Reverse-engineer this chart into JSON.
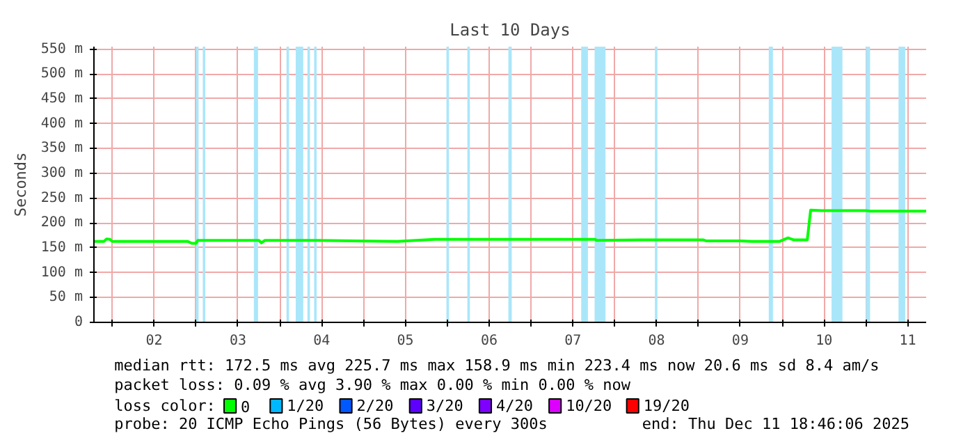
{
  "chart_data": {
    "type": "line",
    "title": "Last 10 Days",
    "ylabel": "Seconds",
    "x": [
      1.78,
      1.9,
      1.93,
      1.97,
      2.0,
      2.9,
      2.95,
      3.0,
      3.02,
      3.75,
      3.78,
      3.82,
      4.45,
      5.4,
      5.85,
      7.77,
      7.78,
      8.31,
      9.06,
      9.09,
      9.5,
      9.64,
      9.97,
      10.07,
      10.14,
      10.3,
      10.34,
      10.47,
      11.0,
      11.05,
      11.72
    ],
    "series": [
      {
        "name": "0",
        "color": "#00ff00",
        "values": [
          163,
          163,
          168,
          167,
          163,
          163,
          159,
          159,
          165,
          165,
          160,
          165,
          165,
          163,
          167,
          167,
          165,
          166,
          166,
          164,
          164,
          163,
          163,
          170,
          166,
          166,
          226,
          225,
          225,
          224,
          224
        ]
      },
      {
        "name": "1/20",
        "color": "#00b8ff",
        "values": [
          null,
          null,
          null,
          null,
          null,
          null,
          null,
          null,
          null,
          null,
          null,
          null,
          null,
          null,
          null,
          null,
          null,
          null,
          null,
          null,
          null,
          null,
          null,
          null,
          null,
          null,
          null,
          null,
          null,
          null,
          null
        ]
      },
      {
        "name": "2/20",
        "color": "#0059ff",
        "values": [
          null,
          null,
          null,
          null,
          null,
          null,
          null,
          null,
          null,
          null,
          null,
          null,
          null,
          null,
          null,
          null,
          null,
          null,
          null,
          null,
          null,
          null,
          null,
          null,
          null,
          null,
          null,
          null,
          null,
          null,
          null
        ]
      },
      {
        "name": "3/20",
        "color": "#5e00ff",
        "values": [
          null,
          null,
          null,
          null,
          null,
          null,
          null,
          null,
          null,
          null,
          null,
          null,
          null,
          null,
          null,
          null,
          null,
          null,
          null,
          null,
          null,
          null,
          null,
          null,
          null,
          null,
          null,
          null,
          null,
          null,
          null
        ]
      },
      {
        "name": "4/20",
        "color": "#7e00ff",
        "values": [
          null,
          null,
          null,
          null,
          null,
          null,
          null,
          null,
          null,
          null,
          null,
          null,
          null,
          null,
          null,
          null,
          null,
          null,
          null,
          null,
          null,
          null,
          null,
          null,
          null,
          null,
          null,
          null,
          null,
          null,
          null
        ]
      },
      {
        "name": "10/20",
        "color": "#dd00ff",
        "values": [
          null,
          null,
          null,
          null,
          null,
          null,
          null,
          null,
          null,
          null,
          null,
          null,
          null,
          null,
          null,
          null,
          null,
          null,
          null,
          null,
          null,
          null,
          null,
          null,
          null,
          null,
          null,
          null,
          null,
          null,
          null
        ]
      },
      {
        "name": "19/20",
        "color": "#ff0000",
        "values": [
          null,
          null,
          null,
          null,
          null,
          null,
          null,
          null,
          null,
          null,
          null,
          null,
          null,
          null,
          null,
          null,
          null,
          null,
          null,
          null,
          null,
          null,
          null,
          null,
          null,
          null,
          null,
          null,
          null,
          null,
          null
        ]
      }
    ],
    "legend": "bottom",
    "legend_title": "loss color:",
    "grid": true,
    "xlim": [
      1.78,
      11.72
    ],
    "xticks": [
      {
        "value": 2,
        "label": null
      },
      {
        "value": 2.5,
        "label": "02"
      },
      {
        "value": 3,
        "label": null
      },
      {
        "value": 3.5,
        "label": "03"
      },
      {
        "value": 4,
        "label": null
      },
      {
        "value": 4.5,
        "label": "04"
      },
      {
        "value": 5,
        "label": null
      },
      {
        "value": 5.5,
        "label": "05"
      },
      {
        "value": 6,
        "label": null
      },
      {
        "value": 6.5,
        "label": "06"
      },
      {
        "value": 7,
        "label": null
      },
      {
        "value": 7.5,
        "label": "07"
      },
      {
        "value": 8,
        "label": null
      },
      {
        "value": 8.5,
        "label": "08"
      },
      {
        "value": 9,
        "label": null
      },
      {
        "value": 9.5,
        "label": "09"
      },
      {
        "value": 10,
        "label": null
      },
      {
        "value": 10.5,
        "label": "10"
      },
      {
        "value": 11,
        "label": null
      },
      {
        "value": 11.5,
        "label": "11"
      }
    ],
    "ylim": [
      0,
      555
    ],
    "yticks": [
      0,
      {
        "value": 50,
        "label": "50 m"
      },
      {
        "value": 100,
        "label": "100 m"
      },
      {
        "value": 150,
        "label": "150 m"
      },
      {
        "value": 200,
        "label": "200 m"
      },
      {
        "value": 250,
        "label": "250 m"
      },
      {
        "value": 300,
        "label": "300 m"
      },
      {
        "value": 350,
        "label": "350 m"
      },
      {
        "value": 400,
        "label": "400 m"
      },
      {
        "value": 450,
        "label": "450 m"
      },
      {
        "value": 500,
        "label": "500 m"
      },
      {
        "value": 550,
        "label": "550 m"
      }
    ],
    "bands": [
      {
        "axis": "x",
        "from": 2.997,
        "to": 3.03,
        "color": "#aae6fa"
      },
      {
        "axis": "x",
        "from": 3.08,
        "to": 3.11,
        "color": "#aae6fa"
      },
      {
        "axis": "x",
        "from": 3.69,
        "to": 3.74,
        "color": "#aae6fa"
      },
      {
        "axis": "x",
        "from": 4.08,
        "to": 4.11,
        "color": "#aae6fa"
      },
      {
        "axis": "x",
        "from": 4.19,
        "to": 4.28,
        "color": "#aae6fa"
      },
      {
        "axis": "x",
        "from": 4.33,
        "to": 4.36,
        "color": "#aae6fa"
      },
      {
        "axis": "x",
        "from": 4.41,
        "to": 4.44,
        "color": "#aae6fa"
      },
      {
        "axis": "x",
        "from": 5.99,
        "to": 6.02,
        "color": "#aae6fa"
      },
      {
        "axis": "x",
        "from": 6.24,
        "to": 6.27,
        "color": "#aae6fa"
      },
      {
        "axis": "x",
        "from": 6.73,
        "to": 6.77,
        "color": "#aae6fa"
      },
      {
        "axis": "x",
        "from": 7.6,
        "to": 7.68,
        "color": "#aae6fa"
      },
      {
        "axis": "x",
        "from": 7.76,
        "to": 7.89,
        "color": "#aae6fa"
      },
      {
        "axis": "x",
        "from": 8.48,
        "to": 8.51,
        "color": "#aae6fa"
      },
      {
        "axis": "x",
        "from": 9.84,
        "to": 9.89,
        "color": "#aae6fa"
      },
      {
        "axis": "x",
        "from": 10.59,
        "to": 10.72,
        "color": "#aae6fa"
      },
      {
        "axis": "x",
        "from": 11.0,
        "to": 11.05,
        "color": "#aae6fa"
      },
      {
        "axis": "x",
        "from": 11.39,
        "to": 11.47,
        "color": "#aae6fa"
      }
    ],
    "annotations": [
      "median rtt:  172.5 ms avg  225.7 ms max  158.9 ms min  223.4 ms now  20.6 ms sd  8.4   am/s",
      "packet loss: 0.09 % avg  3.90 % max  0.00 % min  0.00 % now",
      "probe:       20 ICMP Echo Pings (56 Bytes) every 300s",
      "end: Thu Dec 11 18:46:06 2025"
    ]
  }
}
